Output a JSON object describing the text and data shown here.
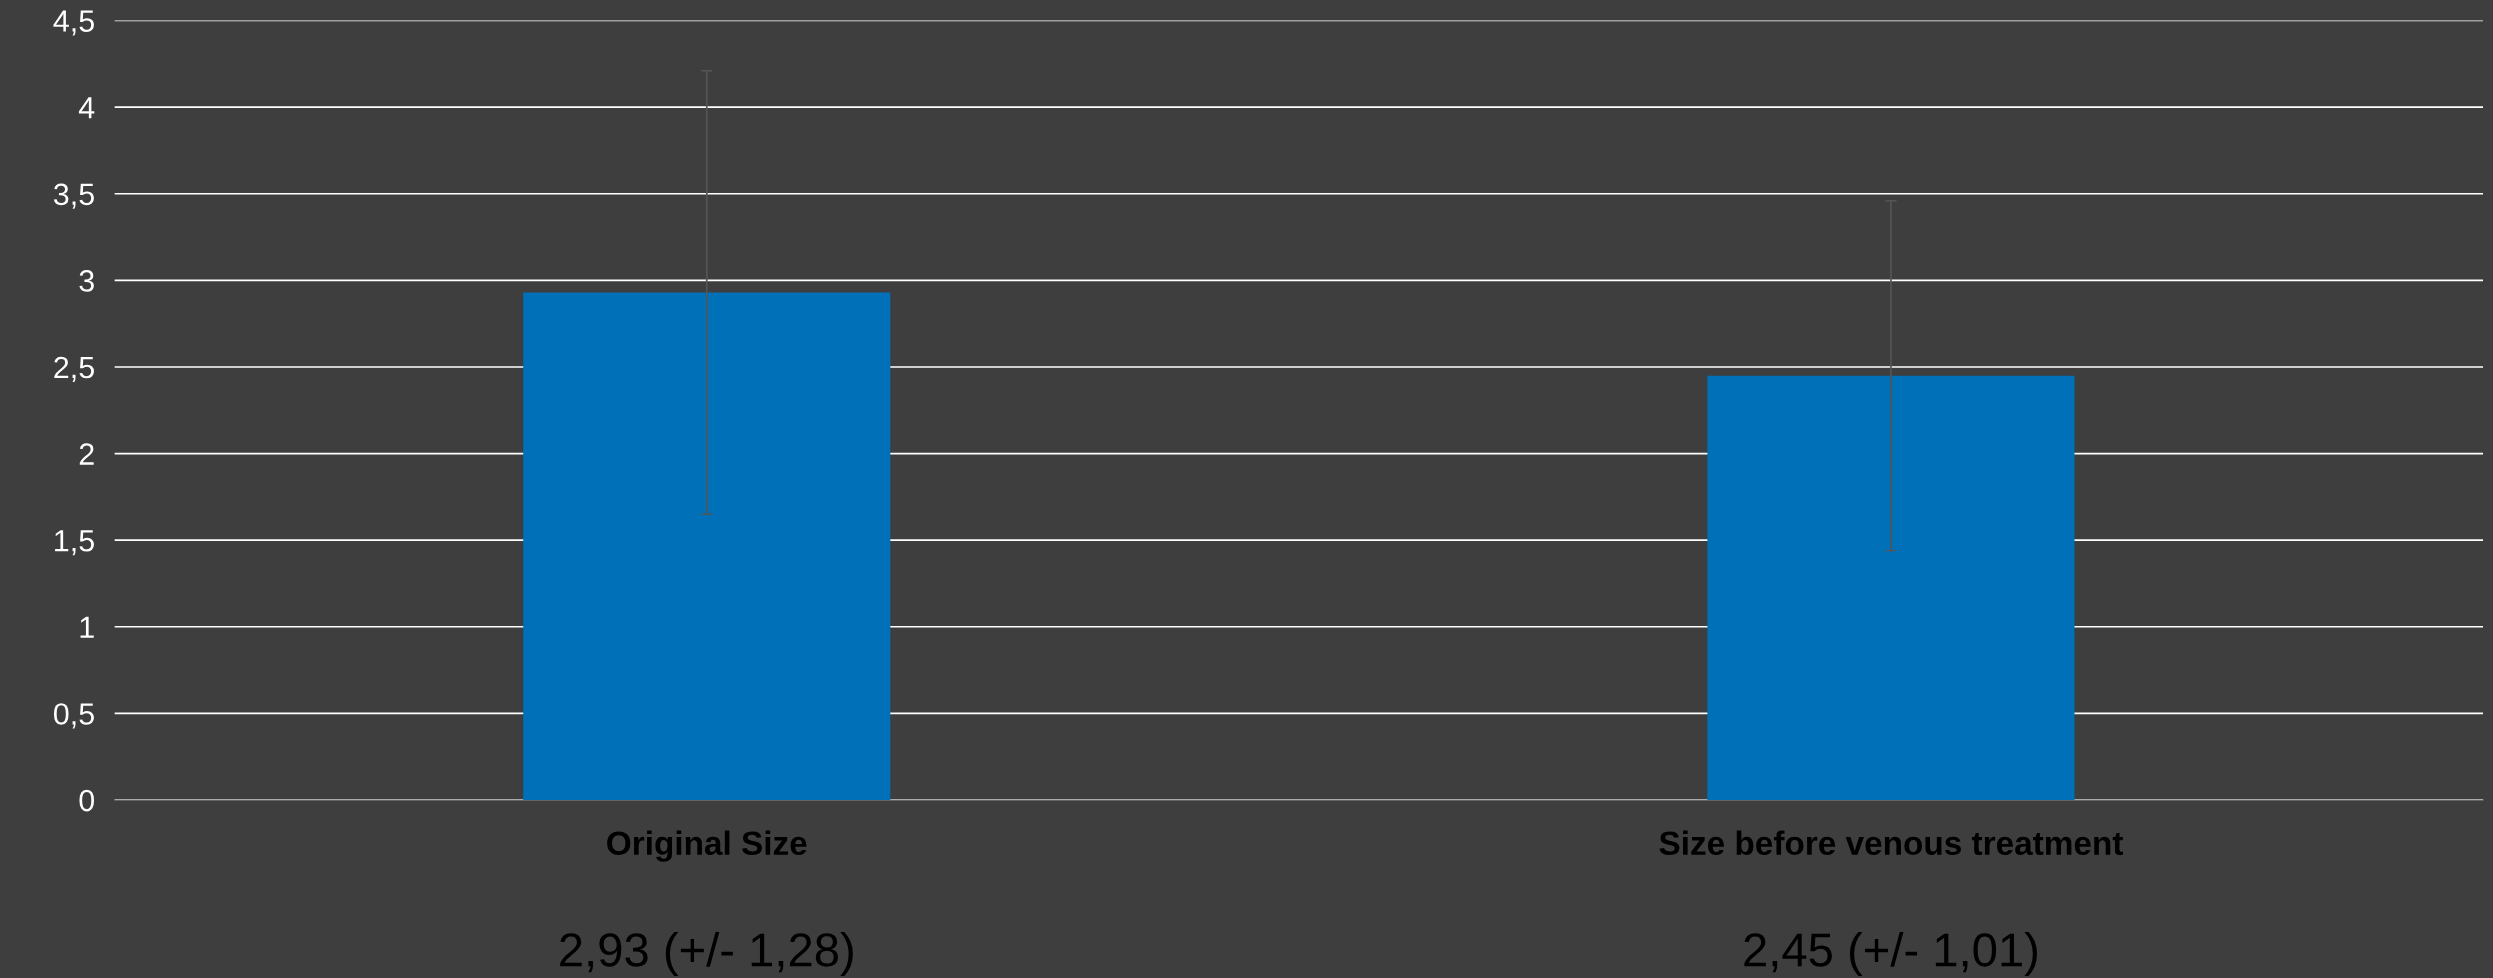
{
  "chart_data": {
    "type": "bar",
    "categories": [
      "Original Size",
      "Size before venous treatment"
    ],
    "values": [
      2.93,
      2.45
    ],
    "errors": [
      1.28,
      1.01
    ],
    "color": "#0070b8",
    "value_labels": [
      "2,93 (+/- 1,28)",
      "2,45 (+/- 1,01)"
    ],
    "ylim": [
      0,
      4.5
    ],
    "yticks": [
      0,
      {
        "value": 0.5,
        "label": "0,5"
      },
      1,
      {
        "value": 1.5,
        "label": "1,5"
      },
      2,
      {
        "value": 2.5,
        "label": "2,5"
      },
      3,
      {
        "value": 3.5,
        "label": "3,5"
      },
      4,
      {
        "value": 4.5,
        "label": "4,5"
      }
    ],
    "grid": "y",
    "legend": false
  }
}
